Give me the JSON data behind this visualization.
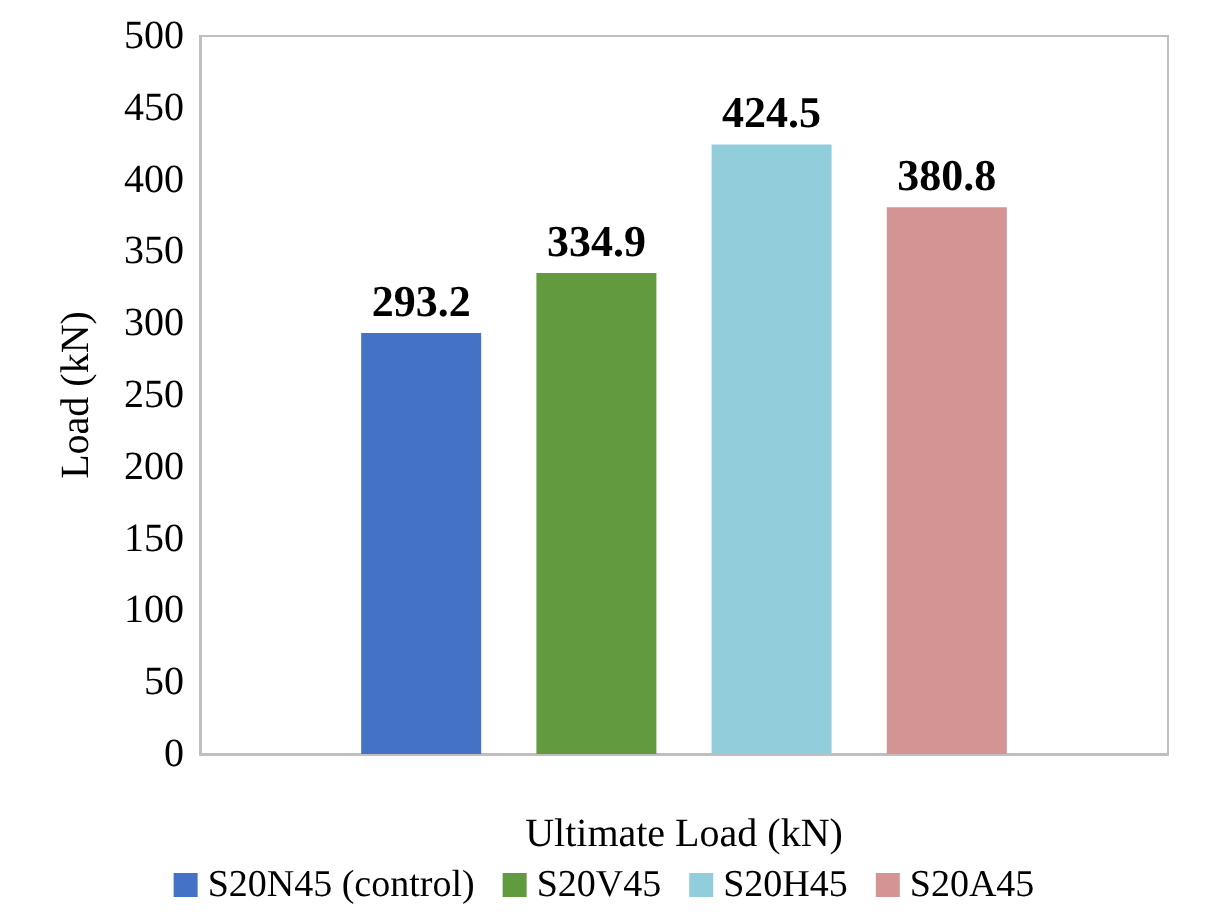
{
  "chart_data": {
    "type": "bar",
    "xlabel": "Ultimate Load (kN)",
    "ylabel": "Load (kN)",
    "categories": [
      null
    ],
    "series": [
      {
        "name": "S20N45 (control)",
        "color": "#4472c4",
        "values": [
          293.2
        ]
      },
      {
        "name": "S20V45",
        "color": "#629b3f",
        "values": [
          334.9
        ]
      },
      {
        "name": "S20H45",
        "color": "#92cddc",
        "values": [
          424.5
        ]
      },
      {
        "name": "S20A45",
        "color": "#d49494",
        "values": [
          380.8
        ]
      }
    ],
    "ylim": [
      0,
      500
    ],
    "yticks": [
      0,
      50,
      100,
      150,
      200,
      250,
      300,
      350,
      400,
      450,
      500
    ],
    "data_labels": true,
    "legend": "bottom",
    "grid": false
  }
}
